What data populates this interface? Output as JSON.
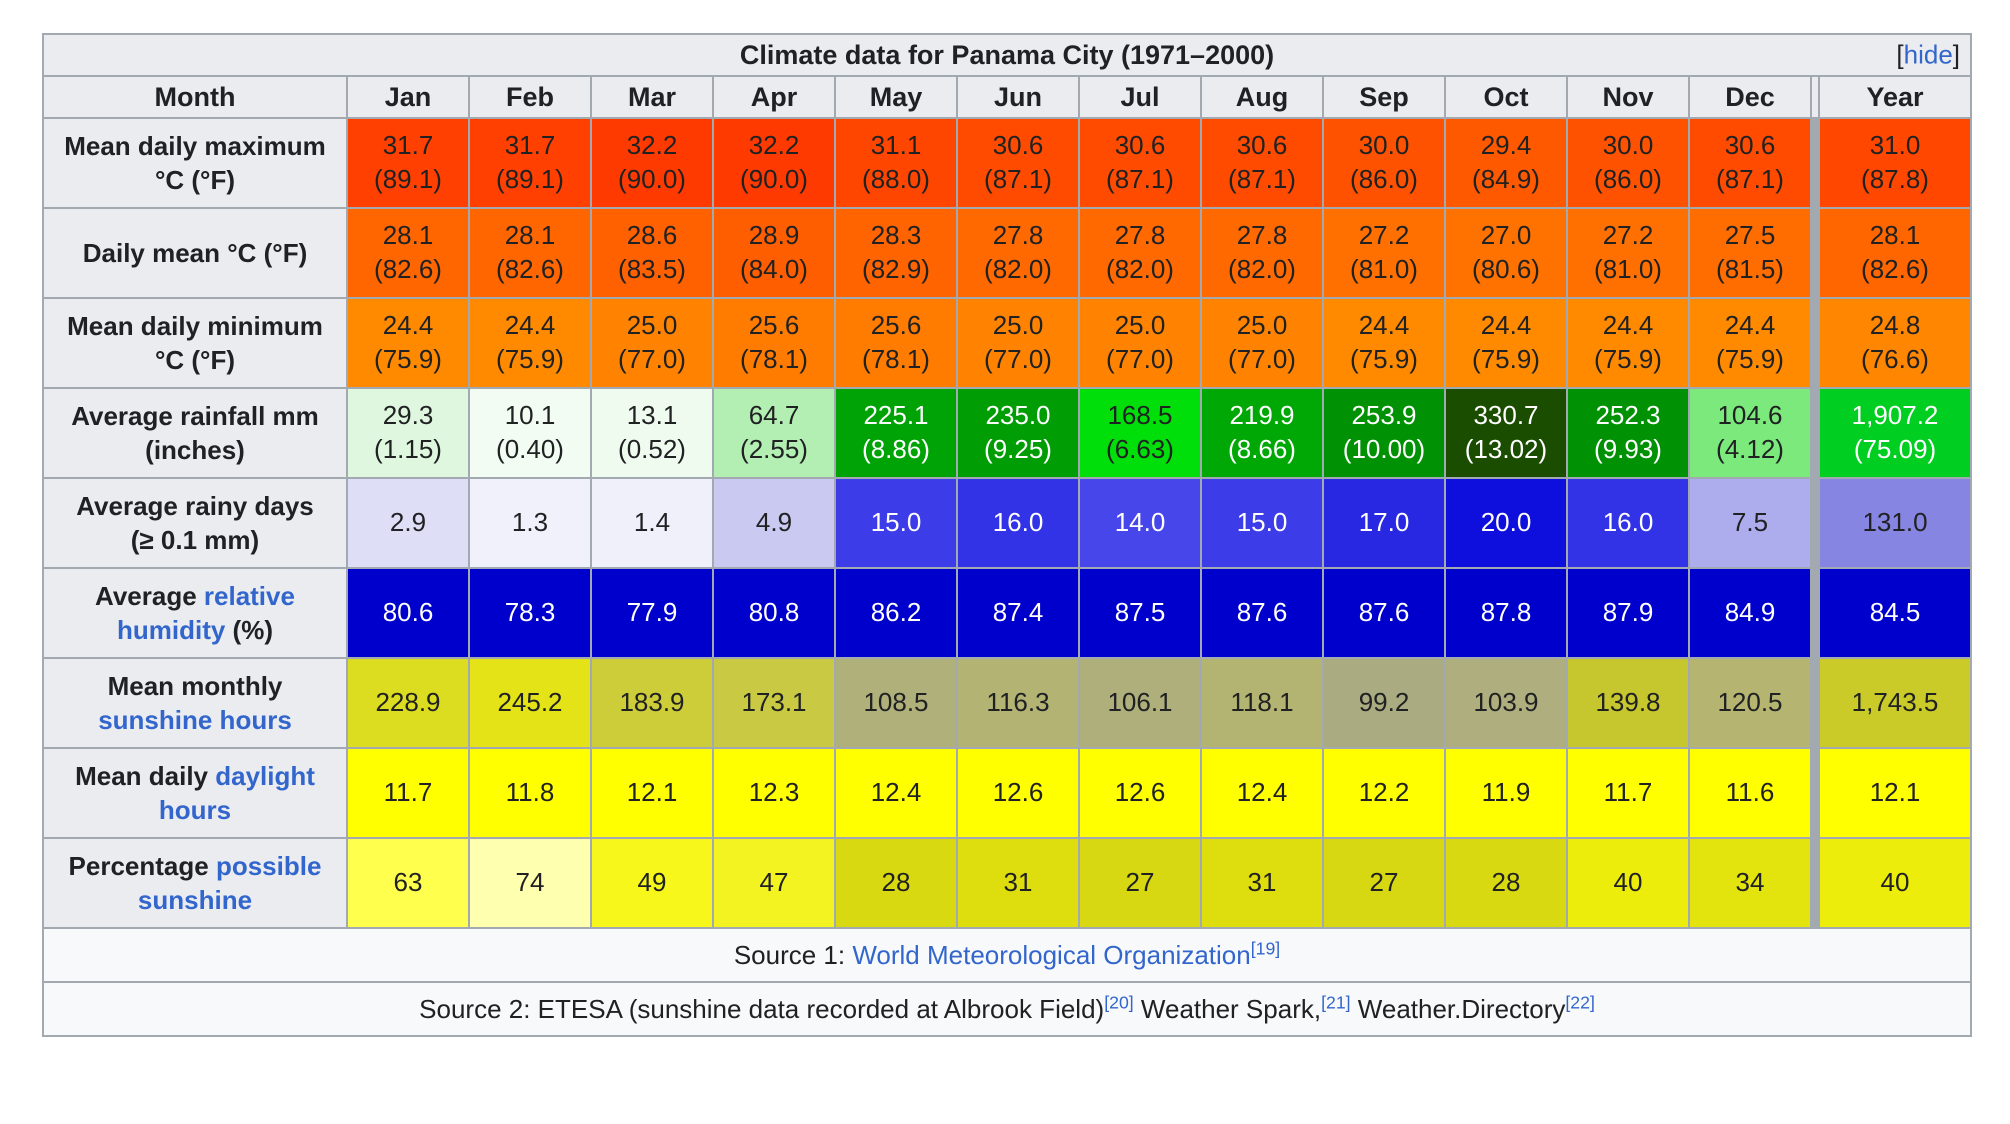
{
  "title": {
    "text": "Climate data for Panama City (1971–2000)",
    "bracket_open": "[",
    "hide_label": "hide",
    "bracket_close": "]"
  },
  "theme": {
    "border": "#a2a9b1",
    "header_bg": "#eaecf0",
    "source_bg": "#f8f9fa",
    "link": "#3366cc",
    "text": "#202122"
  },
  "columns": [
    "Month",
    "Jan",
    "Feb",
    "Mar",
    "Apr",
    "May",
    "Jun",
    "Jul",
    "Aug",
    "Sep",
    "Oct",
    "Nov",
    "Dec",
    "Year"
  ],
  "rows": [
    {
      "key": "mean-daily-maximum",
      "label": [
        {
          "t": "Mean daily maximum\n°C (°F)"
        }
      ],
      "cells": [
        {
          "t": "31.7\n(89.1)",
          "bg": "#FF4000"
        },
        {
          "t": "31.7\n(89.1)",
          "bg": "#FF4000"
        },
        {
          "t": "32.2\n(90.0)",
          "bg": "#FF3A00"
        },
        {
          "t": "32.2\n(90.0)",
          "bg": "#FF3A00"
        },
        {
          "t": "31.1\n(88.0)",
          "bg": "#FF4600"
        },
        {
          "t": "30.6\n(87.1)",
          "bg": "#FF4B00"
        },
        {
          "t": "30.6\n(87.1)",
          "bg": "#FF4B00"
        },
        {
          "t": "30.6\n(87.1)",
          "bg": "#FF4B00"
        },
        {
          "t": "30.0\n(86.0)",
          "bg": "#FF5200"
        },
        {
          "t": "29.4\n(84.9)",
          "bg": "#FF5900"
        },
        {
          "t": "30.0\n(86.0)",
          "bg": "#FF5200"
        },
        {
          "t": "30.6\n(87.1)",
          "bg": "#FF4B00"
        },
        {
          "t": "31.0\n(87.8)",
          "bg": "#FF4700"
        }
      ]
    },
    {
      "key": "daily-mean",
      "label": [
        {
          "t": "Daily mean °C (°F)"
        }
      ],
      "cells": [
        {
          "t": "28.1\n(82.6)",
          "bg": "#FF6600"
        },
        {
          "t": "28.1\n(82.6)",
          "bg": "#FF6600"
        },
        {
          "t": "28.6\n(83.5)",
          "bg": "#FF6100"
        },
        {
          "t": "28.9\n(84.0)",
          "bg": "#FF5E00"
        },
        {
          "t": "28.3\n(82.9)",
          "bg": "#FF6400"
        },
        {
          "t": "27.8\n(82.0)",
          "bg": "#FF6900"
        },
        {
          "t": "27.8\n(82.0)",
          "bg": "#FF6900"
        },
        {
          "t": "27.8\n(82.0)",
          "bg": "#FF6900"
        },
        {
          "t": "27.2\n(81.0)",
          "bg": "#FF7000"
        },
        {
          "t": "27.0\n(80.6)",
          "bg": "#FF7200"
        },
        {
          "t": "27.2\n(81.0)",
          "bg": "#FF7000"
        },
        {
          "t": "27.5\n(81.5)",
          "bg": "#FF6C00"
        },
        {
          "t": "28.1\n(82.6)",
          "bg": "#FF6600"
        }
      ]
    },
    {
      "key": "mean-daily-minimum",
      "label": [
        {
          "t": "Mean daily minimum\n°C (°F)"
        }
      ],
      "cells": [
        {
          "t": "24.4\n(75.9)",
          "bg": "#FF8A00"
        },
        {
          "t": "24.4\n(75.9)",
          "bg": "#FF8A00"
        },
        {
          "t": "25.0\n(77.0)",
          "bg": "#FF8300"
        },
        {
          "t": "25.6\n(78.1)",
          "bg": "#FF7C00"
        },
        {
          "t": "25.6\n(78.1)",
          "bg": "#FF7C00"
        },
        {
          "t": "25.0\n(77.0)",
          "bg": "#FF8300"
        },
        {
          "t": "25.0\n(77.0)",
          "bg": "#FF8300"
        },
        {
          "t": "25.0\n(77.0)",
          "bg": "#FF8300"
        },
        {
          "t": "24.4\n(75.9)",
          "bg": "#FF8A00"
        },
        {
          "t": "24.4\n(75.9)",
          "bg": "#FF8A00"
        },
        {
          "t": "24.4\n(75.9)",
          "bg": "#FF8A00"
        },
        {
          "t": "24.4\n(75.9)",
          "bg": "#FF8A00"
        },
        {
          "t": "24.8\n(76.6)",
          "bg": "#FF8600"
        }
      ]
    },
    {
      "key": "average-rainfall",
      "label": [
        {
          "t": "Average rainfall mm\n(inches)"
        }
      ],
      "cells": [
        {
          "t": "29.3\n(1.15)",
          "bg": "#DFF7DF"
        },
        {
          "t": "10.1\n(0.40)",
          "bg": "#F2FCF2"
        },
        {
          "t": "13.1\n(0.52)",
          "bg": "#F0FBF0"
        },
        {
          "t": "64.7\n(2.55)",
          "bg": "#B3EFB3"
        },
        {
          "t": "225.1\n(8.86)",
          "bg": "#00A305",
          "fg": "#ffffff"
        },
        {
          "t": "235.0\n(9.25)",
          "bg": "#009D04",
          "fg": "#ffffff"
        },
        {
          "t": "168.5\n(6.63)",
          "bg": "#00DF0A"
        },
        {
          "t": "219.9\n(8.66)",
          "bg": "#00A805",
          "fg": "#ffffff"
        },
        {
          "t": "253.9\n(10.00)",
          "bg": "#009104",
          "fg": "#ffffff"
        },
        {
          "t": "330.7\n(13.02)",
          "bg": "#1A4D00",
          "fg": "#ffffff"
        },
        {
          "t": "252.3\n(9.93)",
          "bg": "#009204",
          "fg": "#ffffff"
        },
        {
          "t": "104.6\n(4.12)",
          "bg": "#7CE97C"
        },
        {
          "t": "1,907.2\n(75.09)",
          "bg": "#00CE20",
          "fg": "#ffffff"
        }
      ]
    },
    {
      "key": "average-rainy-days",
      "label": [
        {
          "t": "Average rainy days\n(≥ 0.1 mm)"
        }
      ],
      "cells": [
        {
          "t": "2.9",
          "bg": "#DEDEF7"
        },
        {
          "t": "1.3",
          "bg": "#F1F1FC"
        },
        {
          "t": "1.4",
          "bg": "#F0F0FB"
        },
        {
          "t": "4.9",
          "bg": "#C9C9F1"
        },
        {
          "t": "15.0",
          "bg": "#3C3CE9",
          "fg": "#ffffff"
        },
        {
          "t": "16.0",
          "bg": "#3232E6",
          "fg": "#ffffff"
        },
        {
          "t": "14.0",
          "bg": "#4646EB",
          "fg": "#ffffff"
        },
        {
          "t": "15.0",
          "bg": "#3C3CE9",
          "fg": "#ffffff"
        },
        {
          "t": "17.0",
          "bg": "#2828E3",
          "fg": "#ffffff"
        },
        {
          "t": "20.0",
          "bg": "#0F0FDD",
          "fg": "#ffffff"
        },
        {
          "t": "16.0",
          "bg": "#3232E6",
          "fg": "#ffffff"
        },
        {
          "t": "7.5",
          "bg": "#ADADEE"
        },
        {
          "t": "131.0",
          "bg": "#8686E2"
        }
      ]
    },
    {
      "key": "average-relative-humidity",
      "label": [
        {
          "t": "Average "
        },
        {
          "t": "relative humidity",
          "link": true
        },
        {
          "t": " (%)"
        }
      ],
      "cells": [
        {
          "t": "80.6",
          "bg": "#0000CC",
          "fg": "#ffffff"
        },
        {
          "t": "78.3",
          "bg": "#0000CC",
          "fg": "#ffffff"
        },
        {
          "t": "77.9",
          "bg": "#0000CC",
          "fg": "#ffffff"
        },
        {
          "t": "80.8",
          "bg": "#0000CC",
          "fg": "#ffffff"
        },
        {
          "t": "86.2",
          "bg": "#0000CC",
          "fg": "#ffffff"
        },
        {
          "t": "87.4",
          "bg": "#0000CC",
          "fg": "#ffffff"
        },
        {
          "t": "87.5",
          "bg": "#0000CC",
          "fg": "#ffffff"
        },
        {
          "t": "87.6",
          "bg": "#0000CC",
          "fg": "#ffffff"
        },
        {
          "t": "87.6",
          "bg": "#0000CC",
          "fg": "#ffffff"
        },
        {
          "t": "87.8",
          "bg": "#0000CC",
          "fg": "#ffffff"
        },
        {
          "t": "87.9",
          "bg": "#0000CC",
          "fg": "#ffffff"
        },
        {
          "t": "84.9",
          "bg": "#0000CC",
          "fg": "#ffffff"
        },
        {
          "t": "84.5",
          "bg": "#0000CC",
          "fg": "#ffffff"
        }
      ]
    },
    {
      "key": "mean-monthly-sunshine-hours",
      "label": [
        {
          "t": "Mean monthly\n"
        },
        {
          "t": "sunshine hours",
          "link": true
        }
      ],
      "cells": [
        {
          "t": "228.9",
          "bg": "#DCDC20"
        },
        {
          "t": "245.2",
          "bg": "#E3E318"
        },
        {
          "t": "183.9",
          "bg": "#CDCD3A"
        },
        {
          "t": "173.1",
          "bg": "#C9C943"
        },
        {
          "t": "108.5",
          "bg": "#B0B07A"
        },
        {
          "t": "116.3",
          "bg": "#B3B374"
        },
        {
          "t": "106.1",
          "bg": "#AFAF7C"
        },
        {
          "t": "118.1",
          "bg": "#B4B472"
        },
        {
          "t": "99.2",
          "bg": "#ABAB82"
        },
        {
          "t": "103.9",
          "bg": "#AEAE7E"
        },
        {
          "t": "139.8",
          "bg": "#C6C62E"
        },
        {
          "t": "120.5",
          "bg": "#B5B571"
        },
        {
          "t": "1,743.5",
          "bg": "#CACA29"
        }
      ]
    },
    {
      "key": "mean-daily-daylight-hours",
      "label": [
        {
          "t": "Mean daily "
        },
        {
          "t": "daylight hours",
          "link": true
        }
      ],
      "cells": [
        {
          "t": "11.7",
          "bg": "#FFFF00"
        },
        {
          "t": "11.8",
          "bg": "#FFFF00"
        },
        {
          "t": "12.1",
          "bg": "#FFFF00"
        },
        {
          "t": "12.3",
          "bg": "#FFFF00"
        },
        {
          "t": "12.4",
          "bg": "#FFFF00"
        },
        {
          "t": "12.6",
          "bg": "#FFFF00"
        },
        {
          "t": "12.6",
          "bg": "#FFFF00"
        },
        {
          "t": "12.4",
          "bg": "#FFFF00"
        },
        {
          "t": "12.2",
          "bg": "#FFFF00"
        },
        {
          "t": "11.9",
          "bg": "#FFFF00"
        },
        {
          "t": "11.7",
          "bg": "#FFFF00"
        },
        {
          "t": "11.6",
          "bg": "#FFFF00"
        },
        {
          "t": "12.1",
          "bg": "#FFFF00"
        }
      ]
    },
    {
      "key": "percentage-possible-sunshine",
      "label": [
        {
          "t": "Percentage "
        },
        {
          "t": "possible sunshine",
          "link": true
        }
      ],
      "cells": [
        {
          "t": "63",
          "bg": "#FFFF4D"
        },
        {
          "t": "74",
          "bg": "#FFFFB0"
        },
        {
          "t": "49",
          "bg": "#F7F71B"
        },
        {
          "t": "47",
          "bg": "#F3F322"
        },
        {
          "t": "28",
          "bg": "#D9D911"
        },
        {
          "t": "31",
          "bg": "#DEDE0F"
        },
        {
          "t": "27",
          "bg": "#D7D712"
        },
        {
          "t": "31",
          "bg": "#DEDE0F"
        },
        {
          "t": "27",
          "bg": "#D7D712"
        },
        {
          "t": "28",
          "bg": "#D9D911"
        },
        {
          "t": "40",
          "bg": "#EDED0B"
        },
        {
          "t": "34",
          "bg": "#E3E30D"
        },
        {
          "t": "40",
          "bg": "#EDED0B"
        }
      ]
    }
  ],
  "sources": [
    {
      "key": "source-1",
      "segments": [
        {
          "t": "Source 1: "
        },
        {
          "t": "World Meteorological Organization",
          "link": true
        },
        {
          "t": "[19]",
          "link": true,
          "sup": true
        }
      ]
    },
    {
      "key": "source-2",
      "segments": [
        {
          "t": "Source 2: ETESA (sunshine data recorded at Albrook Field)"
        },
        {
          "t": "[20]",
          "link": true,
          "sup": true
        },
        {
          "t": " Weather Spark,"
        },
        {
          "t": "[21]",
          "link": true,
          "sup": true
        },
        {
          "t": " Weather.Directory"
        },
        {
          "t": "[22]",
          "link": true,
          "sup": true
        }
      ]
    }
  ]
}
